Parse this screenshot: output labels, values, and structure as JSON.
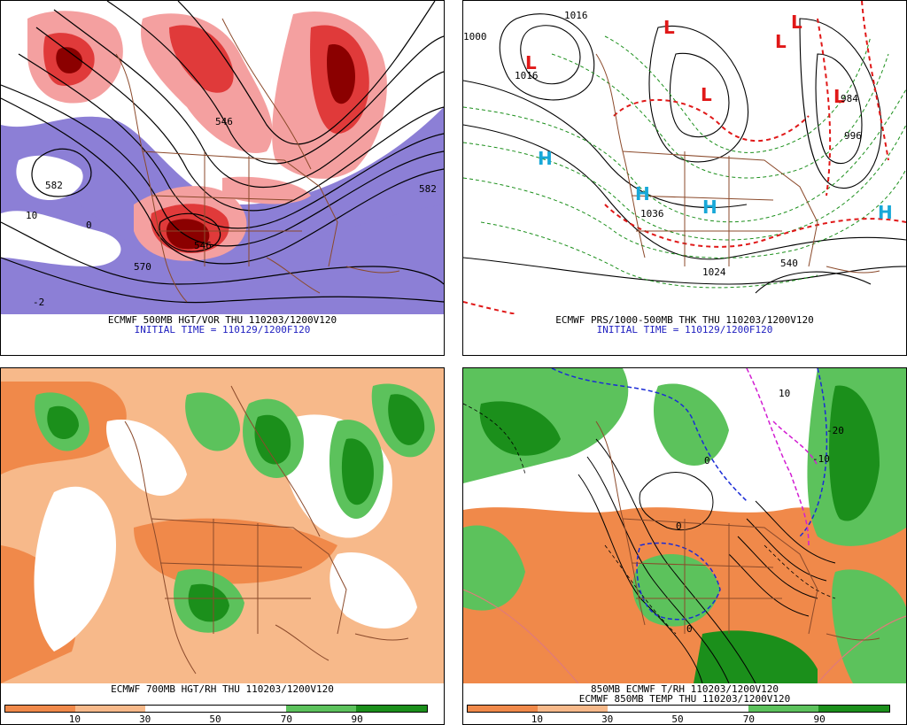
{
  "panels": {
    "top_left": {
      "caption_line1": "ECMWF 500MB HGT/VOR THU 110203/1200V120",
      "caption_line2": "INITIAL TIME = 110129/1200F120",
      "contour_labels": [
        "582",
        "546",
        "582",
        "546",
        "570",
        "10",
        "0",
        "-2"
      ]
    },
    "top_right": {
      "caption_line1": "ECMWF PRS/1000-500MB THK THU 110203/1200V120",
      "caption_line2": "INITIAL TIME = 110129/1200F120",
      "contour_labels": [
        "1016",
        "1024",
        "1000",
        "1016",
        "1036",
        "540",
        "996",
        "984"
      ],
      "highs": [
        "H",
        "H",
        "H",
        "H"
      ],
      "lows": [
        "L",
        "L",
        "L",
        "L",
        "L",
        "L"
      ]
    },
    "bottom_left": {
      "caption_line1": "ECMWF 700MB HGT/RH THU 110203/1200V120",
      "colorbar_ticks": [
        "10",
        "30",
        "50",
        "70",
        "90"
      ]
    },
    "bottom_right": {
      "caption_line1": "850MB ECMWF T/RH 110203/1200V120",
      "caption_line2": "ECMWF 850MB TEMP THU 110203/1200V120",
      "colorbar_ticks": [
        "10",
        "30",
        "50",
        "70",
        "90"
      ],
      "contour_labels": [
        "10",
        "0",
        "0",
        "-10",
        "0",
        "-20"
      ]
    }
  },
  "colors": {
    "orange_dark": "#f0894a",
    "orange_light": "#f7b98a",
    "white": "#ffffff",
    "green_light": "#5cc25c",
    "green_dark": "#1b8f1b",
    "red_dark": "#8b0000",
    "red_mid": "#e03a3a",
    "red_light": "#f4a0a0",
    "purple": "#8c7fd6",
    "map_brown": "#8b4a2b",
    "high_blue": "#18a8d8",
    "low_red": "#e01818"
  }
}
